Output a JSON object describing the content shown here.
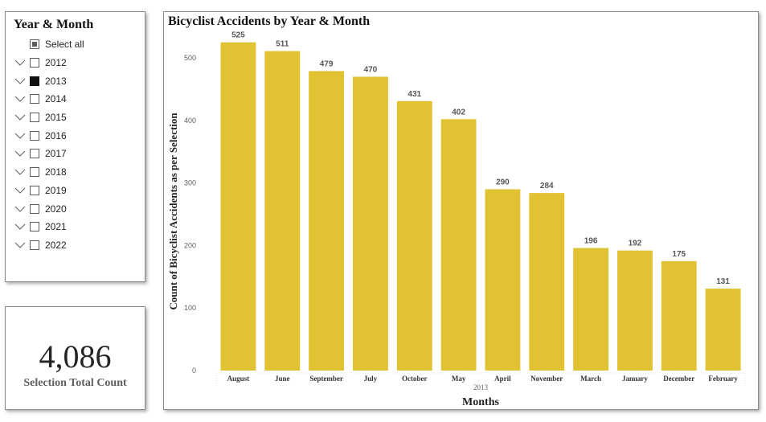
{
  "slicer": {
    "title": "Year & Month",
    "select_all_label": "Select all",
    "items": [
      {
        "label": "2012",
        "checked": false
      },
      {
        "label": "2013",
        "checked": true
      },
      {
        "label": "2014",
        "checked": false
      },
      {
        "label": "2015",
        "checked": false
      },
      {
        "label": "2016",
        "checked": false
      },
      {
        "label": "2017",
        "checked": false
      },
      {
        "label": "2018",
        "checked": false
      },
      {
        "label": "2019",
        "checked": false
      },
      {
        "label": "2020",
        "checked": false
      },
      {
        "label": "2021",
        "checked": false
      },
      {
        "label": "2022",
        "checked": false
      }
    ]
  },
  "card": {
    "value": "4,086",
    "label": "Selection Total Count"
  },
  "colors": {
    "bar": "#e0c232",
    "axis_text": "#605e5c",
    "grid": "#e1e1e1"
  },
  "chart_data": {
    "type": "bar",
    "title": "Bicyclist Accidents by Year & Month",
    "xlabel": "Months",
    "x_group_label": "2013",
    "ylabel": "Count of Bicyclist Accidents as per Selection",
    "categories": [
      "August",
      "June",
      "September",
      "July",
      "October",
      "May",
      "April",
      "November",
      "March",
      "January",
      "December",
      "February"
    ],
    "values": [
      525,
      511,
      479,
      470,
      431,
      402,
      290,
      284,
      196,
      192,
      175,
      131
    ],
    "ylim": [
      0,
      540
    ],
    "yticks": [
      0,
      100,
      200,
      300,
      400,
      500
    ],
    "data_labels": true,
    "grid": false,
    "legend": "none"
  }
}
